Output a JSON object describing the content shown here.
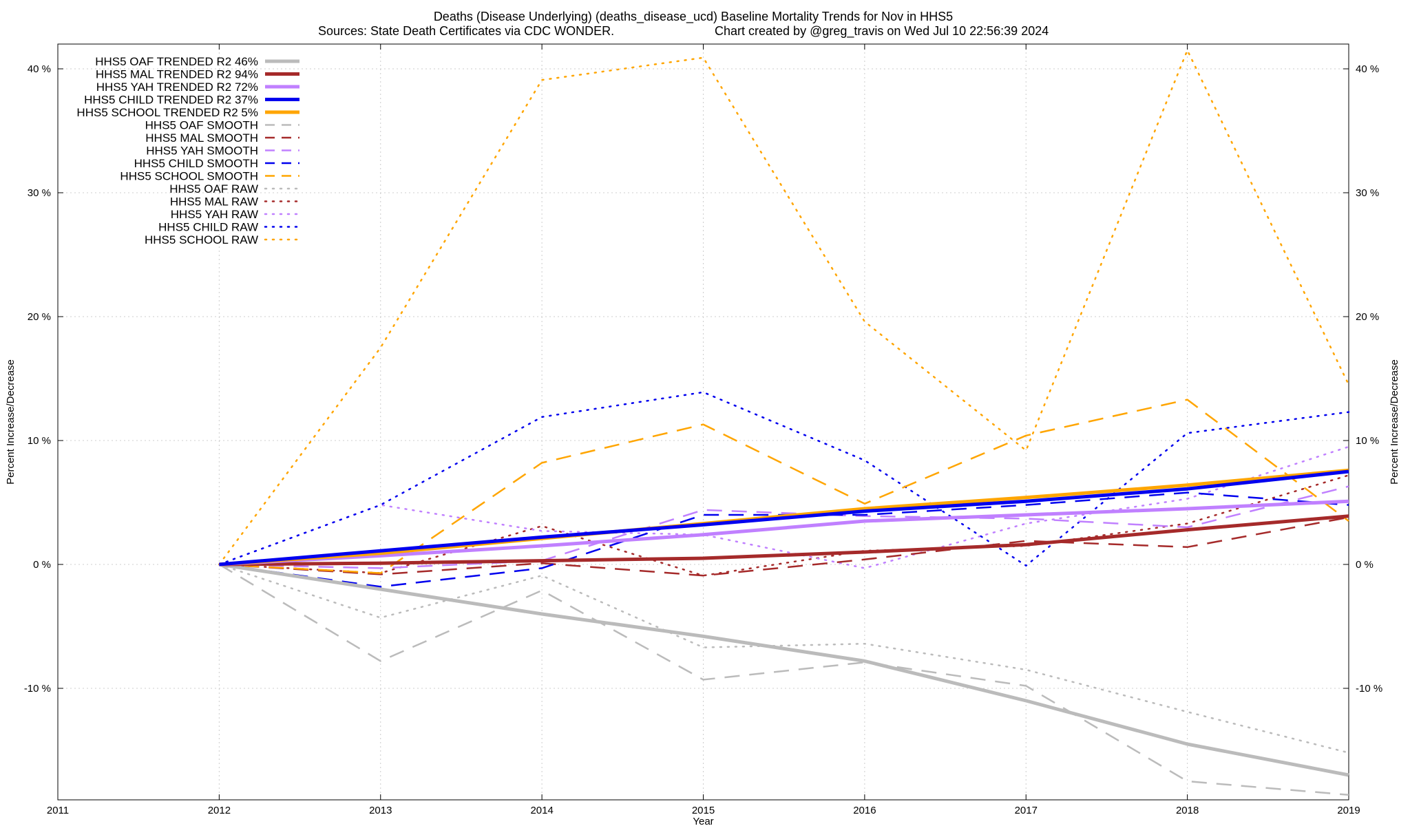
{
  "chart_data": {
    "type": "line",
    "title": "Deaths (Disease Underlying) (deaths_disease_ucd)  Baseline Mortality Trends for Nov in HHS5",
    "subtitle_left": "Sources: State Death Certificates via CDC WONDER.",
    "subtitle_right": "Chart created by @greg_travis on Wed Jul 10 22:56:39 2024",
    "xlabel": "Year",
    "ylabel": "Percent Increase/Decrease",
    "y2label": "Percent Increase/Decrease",
    "xlim": [
      2011,
      2019
    ],
    "ylim": [
      -19,
      42
    ],
    "xticks": [
      "2011",
      "2012",
      "2013",
      "2014",
      "2015",
      "2016",
      "2017",
      "2018",
      "2019"
    ],
    "yticks": [
      "-10 %",
      "0 %",
      "10 %",
      "20 %",
      "30 %",
      "40 %"
    ],
    "ytick_values": [
      -10,
      0,
      10,
      20,
      30,
      40
    ],
    "grid": true,
    "legend_position": "top-left",
    "x": [
      2012,
      2013,
      2014,
      2015,
      2016,
      2017,
      2018,
      2019
    ],
    "series": [
      {
        "name": "HHS5 OAF TRENDED R2  46%",
        "color": "#bbbbbb",
        "style": "solid",
        "width": 5,
        "values": [
          0,
          -2.0,
          -4.0,
          -5.8,
          -7.8,
          -11.0,
          -14.5,
          -17.0
        ]
      },
      {
        "name": "HHS5 MAL TRENDED R2  94%",
        "color": "#a52a2a",
        "style": "solid",
        "width": 5,
        "values": [
          0,
          0.1,
          0.3,
          0.5,
          1.0,
          1.6,
          2.8,
          3.9
        ]
      },
      {
        "name": "HHS5 YAH TRENDED R2  72%",
        "color": "#c080ff",
        "style": "solid",
        "width": 5,
        "values": [
          0,
          0.7,
          1.5,
          2.4,
          3.5,
          4.0,
          4.5,
          5.1
        ]
      },
      {
        "name": "HHS5 CHILD TRENDED R2  37%",
        "color": "#0000ee",
        "style": "solid",
        "width": 5,
        "values": [
          0,
          1.1,
          2.2,
          3.2,
          4.3,
          5.1,
          6.1,
          7.5
        ]
      },
      {
        "name": "HHS5 SCHOOL TRENDED R2   5%",
        "color": "#ffa500",
        "style": "solid",
        "width": 5,
        "values": [
          0,
          0.9,
          2.1,
          3.3,
          4.5,
          5.4,
          6.4,
          7.6
        ]
      },
      {
        "name": "HHS5 OAF SMOOTH",
        "color": "#bbbbbb",
        "style": "dashed",
        "width": 2.5,
        "values": [
          0,
          -7.8,
          -2.1,
          -9.3,
          -7.9,
          -9.8,
          -17.5,
          -18.6
        ]
      },
      {
        "name": "HHS5 MAL SMOOTH",
        "color": "#a52a2a",
        "style": "dashed",
        "width": 2.5,
        "values": [
          0,
          -0.8,
          0.1,
          -0.9,
          0.4,
          1.9,
          1.4,
          3.8
        ]
      },
      {
        "name": "HHS5 YAH SMOOTH",
        "color": "#c080ff",
        "style": "dashed",
        "width": 2.5,
        "values": [
          0,
          -0.3,
          0.3,
          4.4,
          3.9,
          3.7,
          3.0,
          6.3
        ]
      },
      {
        "name": "HHS5 CHILD SMOOTH",
        "color": "#0000ee",
        "style": "dashed",
        "width": 2.5,
        "values": [
          0,
          -1.8,
          -0.3,
          4.0,
          4.0,
          4.8,
          5.8,
          4.8
        ]
      },
      {
        "name": "HHS5 SCHOOL SMOOTH",
        "color": "#ffa500",
        "style": "dashed",
        "width": 2.5,
        "values": [
          0,
          -0.7,
          8.2,
          11.3,
          4.9,
          10.4,
          13.3,
          3.5
        ]
      },
      {
        "name": "HHS5 OAF RAW",
        "color": "#bbbbbb",
        "style": "dotted",
        "width": 2.5,
        "values": [
          0,
          -4.3,
          -0.9,
          -6.7,
          -6.4,
          -8.5,
          -11.9,
          -15.2
        ]
      },
      {
        "name": "HHS5 MAL RAW",
        "color": "#a52a2a",
        "style": "dotted",
        "width": 2.5,
        "values": [
          0,
          -0.7,
          3.1,
          -0.9,
          1.1,
          1.5,
          3.3,
          7.2
        ]
      },
      {
        "name": "HHS5 YAH RAW",
        "color": "#c080ff",
        "style": "dotted",
        "width": 2.5,
        "values": [
          0,
          4.8,
          2.7,
          2.4,
          -0.3,
          3.3,
          5.3,
          9.5
        ]
      },
      {
        "name": "HHS5 CHILD RAW",
        "color": "#0000ee",
        "style": "dotted",
        "width": 2.5,
        "values": [
          0,
          4.8,
          11.9,
          13.9,
          8.4,
          -0.1,
          10.6,
          12.3
        ]
      },
      {
        "name": "HHS5 SCHOOL RAW",
        "color": "#ffa500",
        "style": "dotted",
        "width": 2.5,
        "values": [
          0,
          17.5,
          39.1,
          40.9,
          19.6,
          9.2,
          41.5,
          14.5
        ]
      }
    ]
  }
}
